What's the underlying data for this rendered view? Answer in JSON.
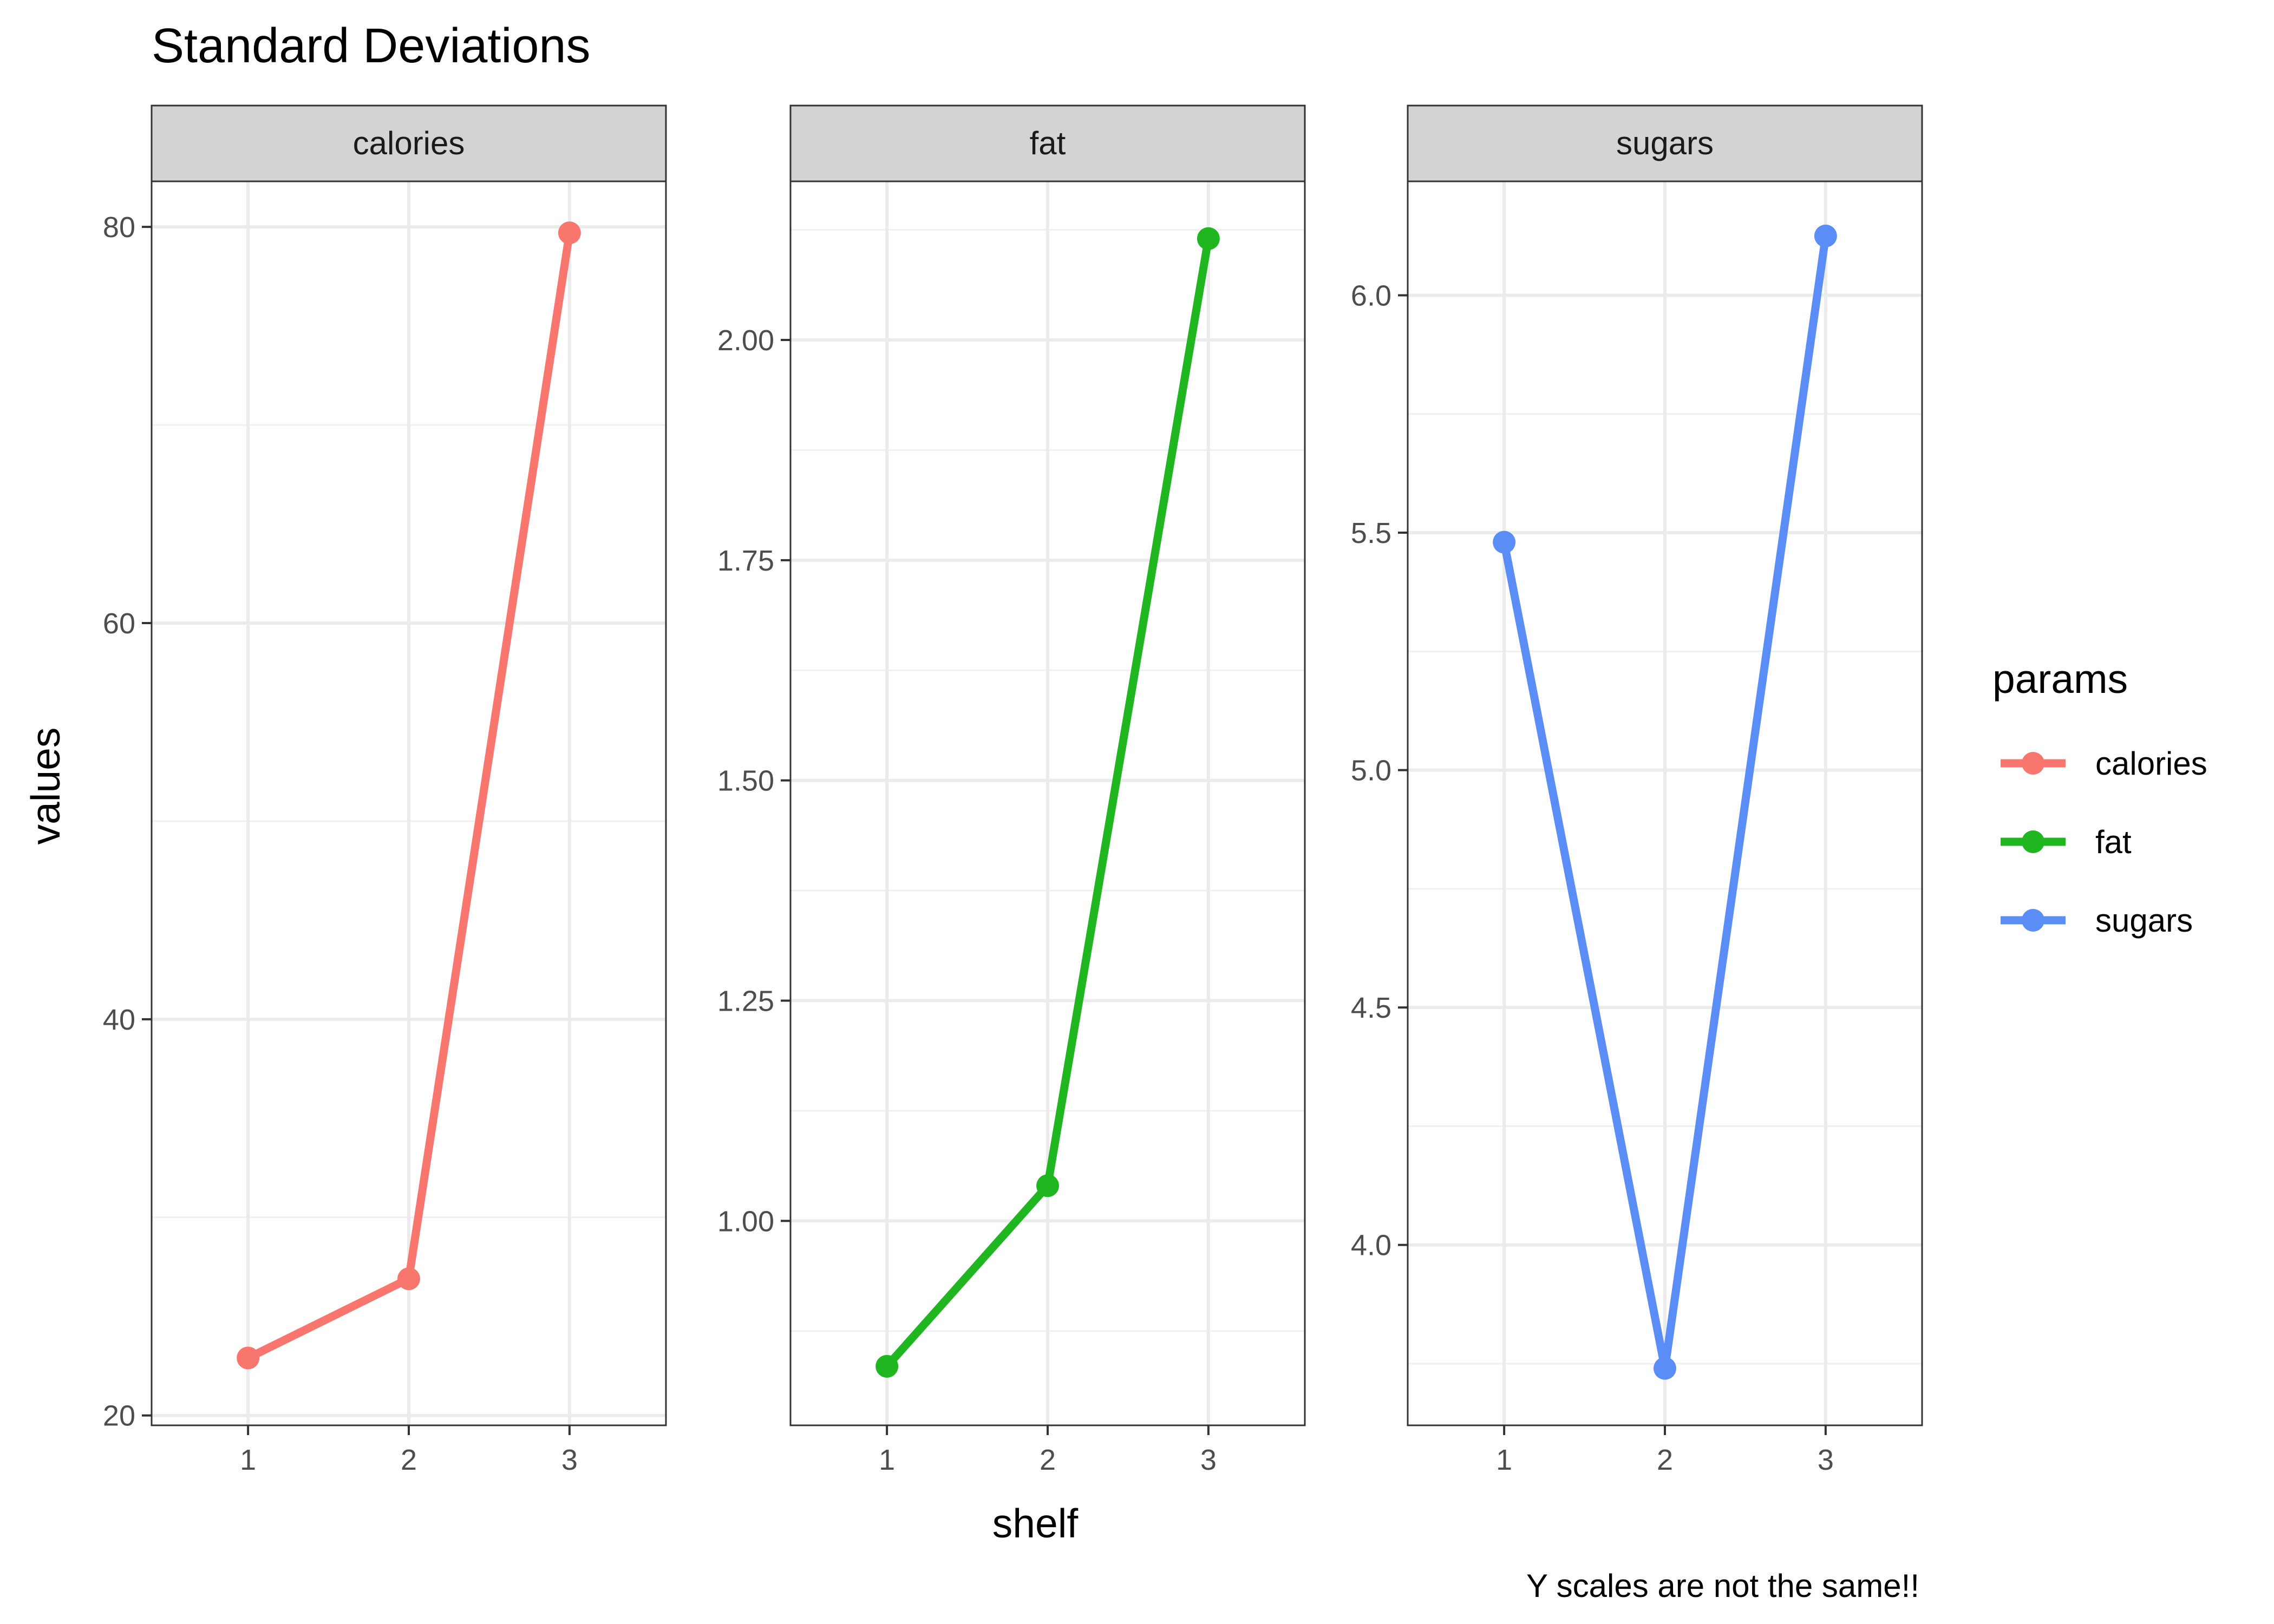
{
  "chart_data": {
    "type": "line",
    "title": "Standard Deviations",
    "xlabel": "shelf",
    "ylabel": "values",
    "caption": "Y scales are not the same!!",
    "x": [
      1,
      2,
      3
    ],
    "x_ticks": [
      "1",
      "2",
      "3"
    ],
    "grid": true,
    "legend": {
      "title": "params",
      "position": "right",
      "entries": [
        "calories",
        "fat",
        "sugars"
      ]
    },
    "panels": [
      {
        "name": "calories",
        "color": "#F8766D",
        "values": [
          22.9,
          26.9,
          79.7
        ],
        "ylim": [
          19.5,
          82.3
        ],
        "yticks": [
          20,
          40,
          60,
          80
        ],
        "ytick_labels": [
          "20",
          "40",
          "60",
          "80"
        ]
      },
      {
        "name": "fat",
        "color": "#1FB61F",
        "values": [
          0.835,
          1.04,
          2.115
        ],
        "ylim": [
          0.768,
          2.18
        ],
        "yticks": [
          1.0,
          1.25,
          1.5,
          1.75,
          2.0
        ],
        "ytick_labels": [
          "1.00",
          "1.25",
          "1.50",
          "1.75",
          "2.00"
        ]
      },
      {
        "name": "sugars",
        "color": "#5B8DF7",
        "values": [
          5.48,
          3.74,
          6.125
        ],
        "ylim": [
          3.62,
          6.24
        ],
        "yticks": [
          4.0,
          4.5,
          5.0,
          5.5,
          6.0
        ],
        "ytick_labels": [
          "4.0",
          "4.5",
          "5.0",
          "5.5",
          "6.0"
        ]
      }
    ]
  }
}
